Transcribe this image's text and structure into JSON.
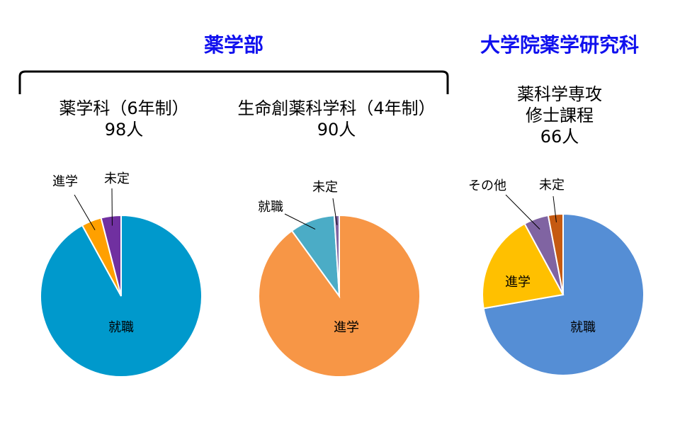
{
  "groups": {
    "undergrad_title": "薬学部",
    "graduate_title": "大学院薬学研究科"
  },
  "colors": {
    "group_title": "#1010ee"
  },
  "chart_data": [
    {
      "type": "pie",
      "title_lines": [
        "薬学科（6年制）",
        "98人"
      ],
      "slices": [
        {
          "label": "就職",
          "value": 92,
          "color": "#0099cc"
        },
        {
          "label": "進学",
          "value": 4,
          "color": "#ffa000"
        },
        {
          "label": "未定",
          "value": 4,
          "color": "#7030a0"
        }
      ]
    },
    {
      "type": "pie",
      "title_lines": [
        "生命創薬科学科（4年制）",
        "90人"
      ],
      "slices": [
        {
          "label": "進学",
          "value": 90,
          "color": "#f79646"
        },
        {
          "label": "就職",
          "value": 9,
          "color": "#4bacc6"
        },
        {
          "label": "未定",
          "value": 1,
          "color": "#8064a2"
        }
      ]
    },
    {
      "type": "pie",
      "title_lines": [
        "薬科学専攻",
        "修士課程",
        "66人"
      ],
      "slices": [
        {
          "label": "就職",
          "value": 73,
          "color": "#558ed5"
        },
        {
          "label": "進学",
          "value": 20,
          "color": "#ffc000"
        },
        {
          "label": "その他",
          "value": 5,
          "color": "#8064a2"
        },
        {
          "label": "未定",
          "value": 3,
          "color": "#c55a11"
        }
      ]
    }
  ]
}
